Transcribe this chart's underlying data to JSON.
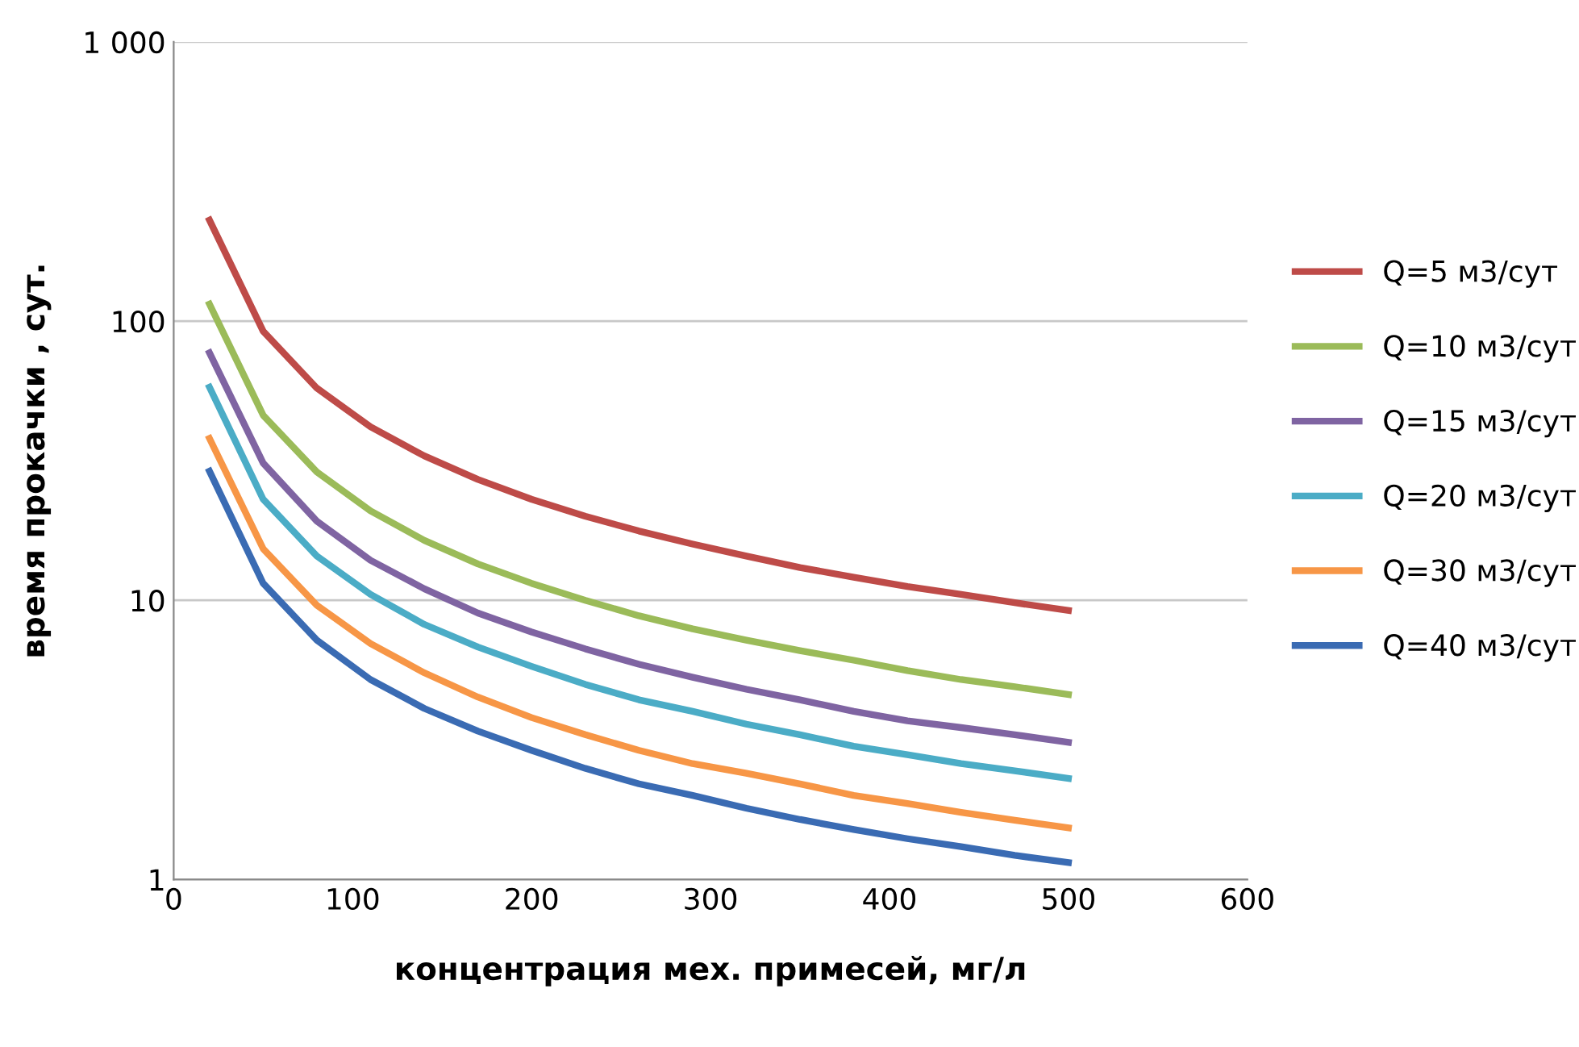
{
  "chart_data": {
    "type": "line",
    "xlabel": "концентрация мех. примесей, мг/л",
    "ylabel": "время прокачки , сут.",
    "log": "y",
    "xlim": [
      0,
      600
    ],
    "xticks": [
      0,
      100,
      200,
      300,
      400,
      500,
      600
    ],
    "ylim": [
      1,
      1000
    ],
    "yticks": [
      1,
      10,
      100,
      {
        "value": 1000,
        "label": "1 000"
      }
    ],
    "grid": "y",
    "legend": "right",
    "marker": "none",
    "line_style": "solid",
    "x": [
      20,
      50,
      80,
      110,
      140,
      170,
      200,
      230,
      260,
      290,
      320,
      350,
      380,
      410,
      440,
      470,
      500
    ],
    "series": [
      {
        "name": "Q=5 м3/сут",
        "color": "#be4b48",
        "values": [
          230,
          92,
          57.5,
          41.8,
          32.9,
          27.1,
          23,
          20,
          17.7,
          15.9,
          14.4,
          13.1,
          12.1,
          11.2,
          10.5,
          9.8,
          9.2
        ]
      },
      {
        "name": "Q=10 м3/сут",
        "color": "#9bbb59",
        "values": [
          115,
          46,
          28.8,
          20.9,
          16.4,
          13.5,
          11.5,
          10,
          8.8,
          7.9,
          7.2,
          6.6,
          6.1,
          5.6,
          5.2,
          4.9,
          4.6
        ]
      },
      {
        "name": "Q=15 м3/сут",
        "color": "#7f64a2",
        "values": [
          77,
          31,
          19.2,
          13.9,
          11,
          9,
          7.7,
          6.7,
          5.9,
          5.3,
          4.8,
          4.4,
          4,
          3.7,
          3.5,
          3.3,
          3.1
        ]
      },
      {
        "name": "Q=20 м3/сут",
        "color": "#4bacc6",
        "values": [
          58,
          23,
          14.4,
          10.5,
          8.2,
          6.8,
          5.8,
          5,
          4.4,
          4,
          3.6,
          3.3,
          3,
          2.8,
          2.6,
          2.45,
          2.3
        ]
      },
      {
        "name": "Q=30 м3/сут",
        "color": "#f79646",
        "values": [
          38,
          15.3,
          9.6,
          7,
          5.5,
          4.5,
          3.8,
          3.3,
          2.9,
          2.6,
          2.4,
          2.2,
          2,
          1.87,
          1.74,
          1.63,
          1.53
        ]
      },
      {
        "name": "Q=40 м3/сут",
        "color": "#3a6bb3",
        "values": [
          29,
          11.5,
          7.2,
          5.2,
          4.1,
          3.4,
          2.9,
          2.5,
          2.2,
          2,
          1.8,
          1.64,
          1.51,
          1.4,
          1.31,
          1.22,
          1.15
        ]
      }
    ]
  }
}
